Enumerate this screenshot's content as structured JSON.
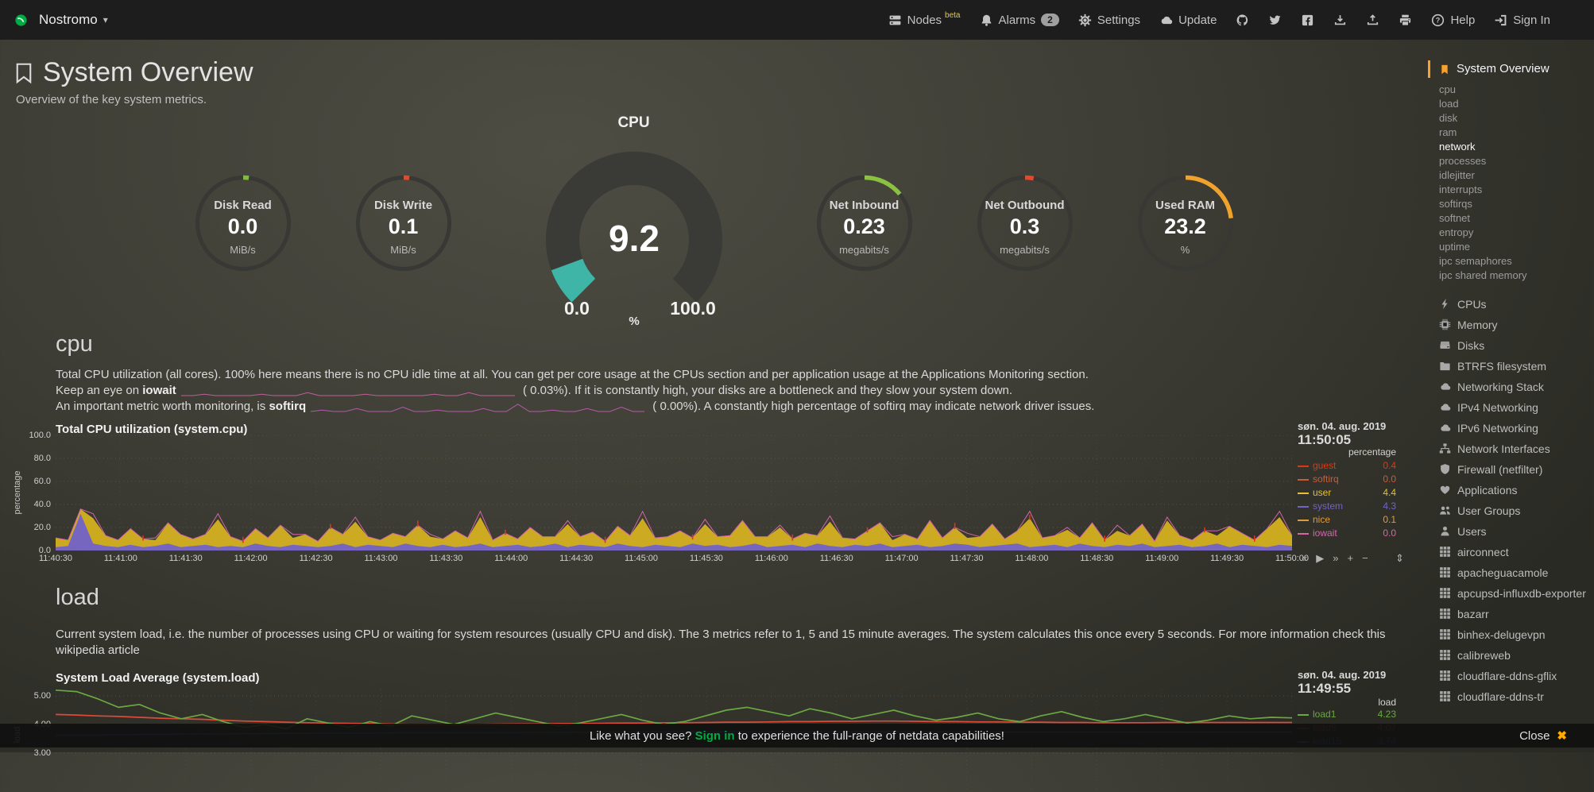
{
  "navbar": {
    "hostname": "Nostromo",
    "items": [
      {
        "id": "nodes",
        "icon": "server",
        "label": "Nodes",
        "sup": "beta"
      },
      {
        "id": "alarms",
        "icon": "bell",
        "label": "Alarms",
        "badge": "2"
      },
      {
        "id": "settings",
        "icon": "gear",
        "label": "Settings"
      },
      {
        "id": "update",
        "icon": "cloud",
        "label": "Update"
      },
      {
        "id": "github",
        "icon": "github"
      },
      {
        "id": "twitter",
        "icon": "twitter"
      },
      {
        "id": "facebook",
        "icon": "facebook"
      },
      {
        "id": "export",
        "icon": "download"
      },
      {
        "id": "import",
        "icon": "upload"
      },
      {
        "id": "print",
        "icon": "print"
      },
      {
        "id": "help",
        "icon": "question",
        "label": "Help"
      },
      {
        "id": "sign-in",
        "icon": "sign-in",
        "label": "Sign In"
      }
    ]
  },
  "header": {
    "title": "System Overview",
    "subtitle": "Overview of the key system metrics."
  },
  "gauges": {
    "small": [
      {
        "title": "Disk Read",
        "value": "0.0",
        "unit": "MiB/s",
        "percent": 2,
        "color": "#7fbb3c"
      },
      {
        "title": "Disk Write",
        "value": "0.1",
        "unit": "MiB/s",
        "percent": 2,
        "color": "#e2492f"
      },
      {
        "title": "Net Inbound",
        "value": "0.23",
        "unit": "megabits/s",
        "percent": 14,
        "color": "#8bc140"
      },
      {
        "title": "Net Outbound",
        "value": "0.3",
        "unit": "megabits/s",
        "percent": 3,
        "color": "#e2492f"
      },
      {
        "title": "Used RAM",
        "value": "23.2",
        "unit": "%",
        "percent": 23.2,
        "color": "#f0a32c"
      }
    ],
    "cpu": {
      "title": "CPU",
      "value": "9.2",
      "min": "0.0",
      "max": "100.0",
      "unit": "%",
      "percent": 9.2,
      "color": "#3fb5a8"
    }
  },
  "cpu_section": {
    "heading": "cpu",
    "description": "Total CPU utilization (all cores). 100% here means there is no CPU idle time at all. You can get per core usage at the CPUs section and per application usage at the Applications Monitoring section.",
    "note_iowait": {
      "pre": "Keep an eye on ",
      "keyword": "iowait",
      "post": " ( 0.03%). If it is constantly high, your disks are a bottleneck and they slow your system down."
    },
    "note_softirq": {
      "pre": "An important metric worth monitoring, is ",
      "keyword": "softirq",
      "post": " ( 0.00%). A constantly high percentage of softirq may indicate network driver issues."
    }
  },
  "load_section": {
    "heading": "load",
    "description": "Current system load, i.e. the number of processes using CPU or waiting for system resources (usually CPU and disk). The 3 metrics refer to 1, 5 and 15 minute averages. The system calculates this once every 5 seconds. For more information check this ",
    "link_text": "wikipedia article"
  },
  "toolbox": {
    "back": "«",
    "play": "▶",
    "forward": "»",
    "zoom_in": "+",
    "zoom_out": "−",
    "resize": "⇕"
  },
  "chart_data": [
    {
      "type": "area",
      "id": "cpu",
      "title": "Total CPU utilization (system.cpu)",
      "date": "søn. 04. aug. 2019",
      "time": "11:50:05",
      "unit": "percentage",
      "ylim": [
        0,
        100
      ],
      "grid": true,
      "legend_position": "right",
      "yticks": [
        {
          "label": "100.0",
          "v": 100
        },
        {
          "label": "80.0",
          "v": 80
        },
        {
          "label": "60.0",
          "v": 60
        },
        {
          "label": "40.0",
          "v": 40
        },
        {
          "label": "20.0",
          "v": 20
        },
        {
          "label": "0.0",
          "v": 0
        }
      ],
      "xticks": [
        "11:40:30",
        "11:41:00",
        "11:41:30",
        "11:42:00",
        "11:42:30",
        "11:43:00",
        "11:43:30",
        "11:44:00",
        "11:44:30",
        "11:45:00",
        "11:45:30",
        "11:46:00",
        "11:46:30",
        "11:47:00",
        "11:47:30",
        "11:48:00",
        "11:48:30",
        "11:49:00",
        "11:49:30",
        "11:50:00"
      ],
      "legend": [
        {
          "name": "guest",
          "value": "0.4",
          "color": "#dc3912"
        },
        {
          "name": "softirq",
          "value": "0.0",
          "color": "#cc5b35"
        },
        {
          "name": "user",
          "value": "4.4",
          "color": "#e6c02d"
        },
        {
          "name": "system",
          "value": "4.3",
          "color": "#7262c9"
        },
        {
          "name": "nice",
          "value": "0.1",
          "color": "#e09c3a"
        },
        {
          "name": "iowait",
          "value": "0.0",
          "color": "#d565a8"
        }
      ],
      "series": {
        "system": [
          3,
          4,
          32,
          6,
          4,
          3,
          5,
          3,
          4,
          6,
          3,
          4,
          5,
          3,
          4,
          3,
          6,
          4,
          3,
          5,
          4,
          3,
          4,
          6,
          3,
          5,
          4,
          3,
          6,
          4,
          3,
          5,
          3,
          4,
          6,
          3,
          4,
          5,
          3,
          4,
          6,
          3,
          5,
          4,
          3,
          6,
          4,
          3,
          5,
          4,
          3,
          6,
          4,
          5,
          3,
          4,
          6,
          3,
          4,
          5,
          3,
          6,
          4,
          3,
          5,
          4,
          6,
          3,
          4,
          5,
          3,
          4,
          6,
          5,
          3,
          4,
          5,
          6,
          3,
          4,
          5,
          3,
          6,
          4,
          3,
          5,
          4,
          6,
          3,
          4,
          5,
          3,
          4,
          6,
          3,
          5,
          4,
          3,
          5,
          4
        ],
        "user": [
          8,
          5,
          4,
          22,
          9,
          6,
          14,
          7,
          5,
          18,
          11,
          6,
          9,
          24,
          8,
          5,
          13,
          7,
          19,
          6,
          10,
          5,
          16,
          8,
          22,
          7,
          5,
          12,
          6,
          18,
          9,
          5,
          14,
          7,
          23,
          6,
          11,
          5,
          17,
          8,
          6,
          20,
          7,
          12,
          5,
          15,
          9,
          25,
          6,
          8,
          14,
          5,
          19,
          7,
          10,
          22,
          6,
          9,
          16,
          5,
          12,
          7,
          21,
          8,
          5,
          13,
          18,
          6,
          10,
          5,
          23,
          7,
          14,
          6,
          9,
          19,
          5,
          11,
          25,
          7,
          8,
          15,
          5,
          20,
          6,
          12,
          9,
          17,
          5,
          22,
          8,
          6,
          13,
          7,
          18,
          10,
          5,
          16,
          24,
          9
        ],
        "iowait": [
          0,
          0,
          0,
          4,
          0,
          0,
          0,
          0,
          2,
          0,
          0,
          0,
          0,
          5,
          0,
          0,
          0,
          0,
          0,
          3,
          0,
          0,
          0,
          0,
          4,
          0,
          0,
          0,
          0,
          0,
          2,
          0,
          0,
          0,
          5,
          0,
          0,
          0,
          0,
          0,
          0,
          3,
          0,
          0,
          0,
          0,
          0,
          6,
          0,
          0,
          0,
          0,
          4,
          0,
          0,
          0,
          0,
          0,
          2,
          0,
          0,
          0,
          5,
          0,
          0,
          0,
          0,
          3,
          0,
          0,
          0,
          0,
          0,
          4,
          0,
          0,
          0,
          0,
          6,
          0,
          0,
          2,
          0,
          0,
          0,
          5,
          0,
          0,
          0,
          3,
          0,
          0,
          0,
          4,
          0,
          0,
          0,
          0,
          5,
          0
        ],
        "guest": [
          0,
          0,
          0,
          0,
          0,
          0,
          0,
          3,
          0,
          0,
          0,
          0,
          0,
          0,
          0,
          4,
          0,
          0,
          0,
          0,
          0,
          0,
          3,
          0,
          0,
          0,
          0,
          0,
          0,
          4,
          0,
          0,
          0,
          0,
          0,
          0,
          3,
          0,
          0,
          0,
          0,
          0,
          0,
          0,
          4,
          0,
          0,
          0,
          0,
          0,
          0,
          3,
          0,
          0,
          0,
          0,
          0,
          0,
          0,
          4,
          0,
          0,
          0,
          0,
          0,
          3,
          0,
          0,
          0,
          0,
          0,
          0,
          4,
          0,
          0,
          0,
          0,
          0,
          3,
          0,
          0,
          0,
          0,
          0,
          4,
          0,
          0,
          0,
          0,
          0,
          0,
          0,
          3,
          0,
          0,
          0,
          4,
          0,
          0,
          0
        ]
      }
    },
    {
      "type": "line",
      "id": "load",
      "title": "System Load Average (system.load)",
      "date": "søn. 04. aug. 2019",
      "time": "11:49:55",
      "unit": "load",
      "grid": true,
      "legend_position": "right",
      "yticks": [
        {
          "label": "5.00",
          "v": 5
        },
        {
          "label": "4.00",
          "v": 4
        },
        {
          "label": "3.00",
          "v": 3
        }
      ],
      "legend": [
        {
          "name": "load1",
          "value": "4.23",
          "color": "#6aa842"
        },
        {
          "name": "load5",
          "value": "4.07",
          "color": "#dc4a38"
        },
        {
          "name": "load15",
          "value": "3.74",
          "color": "#4d6fd0"
        }
      ],
      "series": {
        "load1": [
          5.2,
          5.15,
          4.9,
          4.6,
          4.7,
          4.4,
          4.2,
          4.35,
          4.1,
          3.9,
          4.0,
          3.85,
          4.2,
          4.05,
          3.9,
          4.1,
          3.95,
          4.3,
          4.15,
          4.0,
          4.2,
          4.4,
          4.25,
          4.1,
          3.95,
          4.05,
          4.2,
          4.35,
          4.15,
          4.0,
          4.1,
          4.3,
          4.5,
          4.6,
          4.45,
          4.3,
          4.55,
          4.4,
          4.2,
          4.35,
          4.5,
          4.3,
          4.15,
          4.25,
          4.4,
          4.2,
          4.1,
          4.3,
          4.45,
          4.25,
          4.1,
          4.2,
          4.35,
          4.2,
          4.05,
          4.15,
          4.3,
          4.2,
          4.25,
          4.23
        ],
        "load5": [
          4.35,
          4.33,
          4.3,
          4.28,
          4.25,
          4.22,
          4.2,
          4.18,
          4.15,
          4.12,
          4.1,
          4.08,
          4.06,
          4.05,
          4.04,
          4.03,
          4.02,
          4.0,
          4.0,
          3.99,
          4.0,
          4.01,
          4.02,
          4.02,
          4.03,
          4.03,
          4.04,
          4.05,
          4.05,
          4.06,
          4.06,
          4.07,
          4.08,
          4.08,
          4.09,
          4.1,
          4.1,
          4.11,
          4.11,
          4.12,
          4.12,
          4.11,
          4.1,
          4.1,
          4.09,
          4.09,
          4.08,
          4.08,
          4.07,
          4.07,
          4.06,
          4.06,
          4.06,
          4.07,
          4.07,
          4.07,
          4.07,
          4.07,
          4.07,
          4.07
        ],
        "load15": [
          3.62,
          3.63,
          3.63,
          3.64,
          3.65,
          3.65,
          3.66,
          3.67,
          3.67,
          3.68,
          3.68,
          3.69,
          3.69,
          3.7,
          3.7,
          3.7,
          3.71,
          3.71,
          3.71,
          3.72,
          3.72,
          3.72,
          3.72,
          3.73,
          3.73,
          3.73,
          3.73,
          3.73,
          3.74,
          3.74,
          3.74,
          3.74,
          3.74,
          3.74,
          3.74,
          3.74,
          3.74,
          3.74,
          3.74,
          3.74,
          3.74,
          3.74,
          3.74,
          3.74,
          3.74,
          3.74,
          3.74,
          3.74,
          3.74,
          3.74,
          3.74,
          3.74,
          3.74,
          3.74,
          3.74,
          3.74,
          3.74,
          3.74,
          3.74,
          3.74
        ]
      }
    }
  ],
  "sparklines": {
    "iowait": {
      "color": "#d565a8",
      "points": [
        0,
        0,
        1,
        0,
        0,
        0,
        0,
        1,
        0,
        0,
        0,
        2,
        0,
        0,
        0,
        0,
        1,
        0,
        0,
        0,
        0,
        0,
        1,
        0,
        0,
        2,
        0,
        0,
        0,
        0
      ]
    },
    "softirq": {
      "color": "#c95dc0",
      "points": [
        0,
        1,
        0,
        0,
        2,
        0,
        0,
        0,
        3,
        0,
        0,
        1,
        0,
        0,
        0,
        2,
        0,
        0,
        5,
        0,
        0,
        1,
        0,
        0,
        2,
        0,
        0,
        3,
        0,
        0
      ]
    }
  },
  "sidebar": {
    "active": {
      "label": "System Overview",
      "icon": "bookmark"
    },
    "subitems": [
      {
        "label": "cpu"
      },
      {
        "label": "load"
      },
      {
        "label": "disk"
      },
      {
        "label": "ram"
      },
      {
        "label": "network",
        "active": true
      },
      {
        "label": "processes"
      },
      {
        "label": "idlejitter"
      },
      {
        "label": "interrupts"
      },
      {
        "label": "softirqs"
      },
      {
        "label": "softnet"
      },
      {
        "label": "entropy"
      },
      {
        "label": "uptime"
      },
      {
        "label": "ipc semaphores"
      },
      {
        "label": "ipc shared memory"
      }
    ],
    "sections": [
      {
        "label": "CPUs",
        "icon": "bolt"
      },
      {
        "label": "Memory",
        "icon": "memory"
      },
      {
        "label": "Disks",
        "icon": "hdd"
      },
      {
        "label": "BTRFS filesystem",
        "icon": "folder"
      },
      {
        "label": "Networking Stack",
        "icon": "cloud"
      },
      {
        "label": "IPv4 Networking",
        "icon": "cloud"
      },
      {
        "label": "IPv6 Networking",
        "icon": "cloud"
      },
      {
        "label": "Network Interfaces",
        "icon": "sitemap"
      },
      {
        "label": "Firewall (netfilter)",
        "icon": "shield"
      },
      {
        "label": "Applications",
        "icon": "heart"
      },
      {
        "label": "User Groups",
        "icon": "users"
      },
      {
        "label": "Users",
        "icon": "user"
      },
      {
        "label": "airconnect",
        "icon": "grid"
      },
      {
        "label": "apacheguacamole",
        "icon": "grid"
      },
      {
        "label": "apcupsd-influxdb-exporter",
        "icon": "grid"
      },
      {
        "label": "bazarr",
        "icon": "grid"
      },
      {
        "label": "binhex-delugevpn",
        "icon": "grid"
      },
      {
        "label": "calibreweb",
        "icon": "grid"
      },
      {
        "label": "cloudflare-ddns-gflix",
        "icon": "grid"
      },
      {
        "label": "cloudflare-ddns-tr",
        "icon": "grid"
      }
    ]
  },
  "footer": {
    "pre": "Like what you see? ",
    "signin": "Sign in",
    "post": " to experience the full-range of netdata capabilities!",
    "close": "Close",
    "close_icon": "✖"
  }
}
